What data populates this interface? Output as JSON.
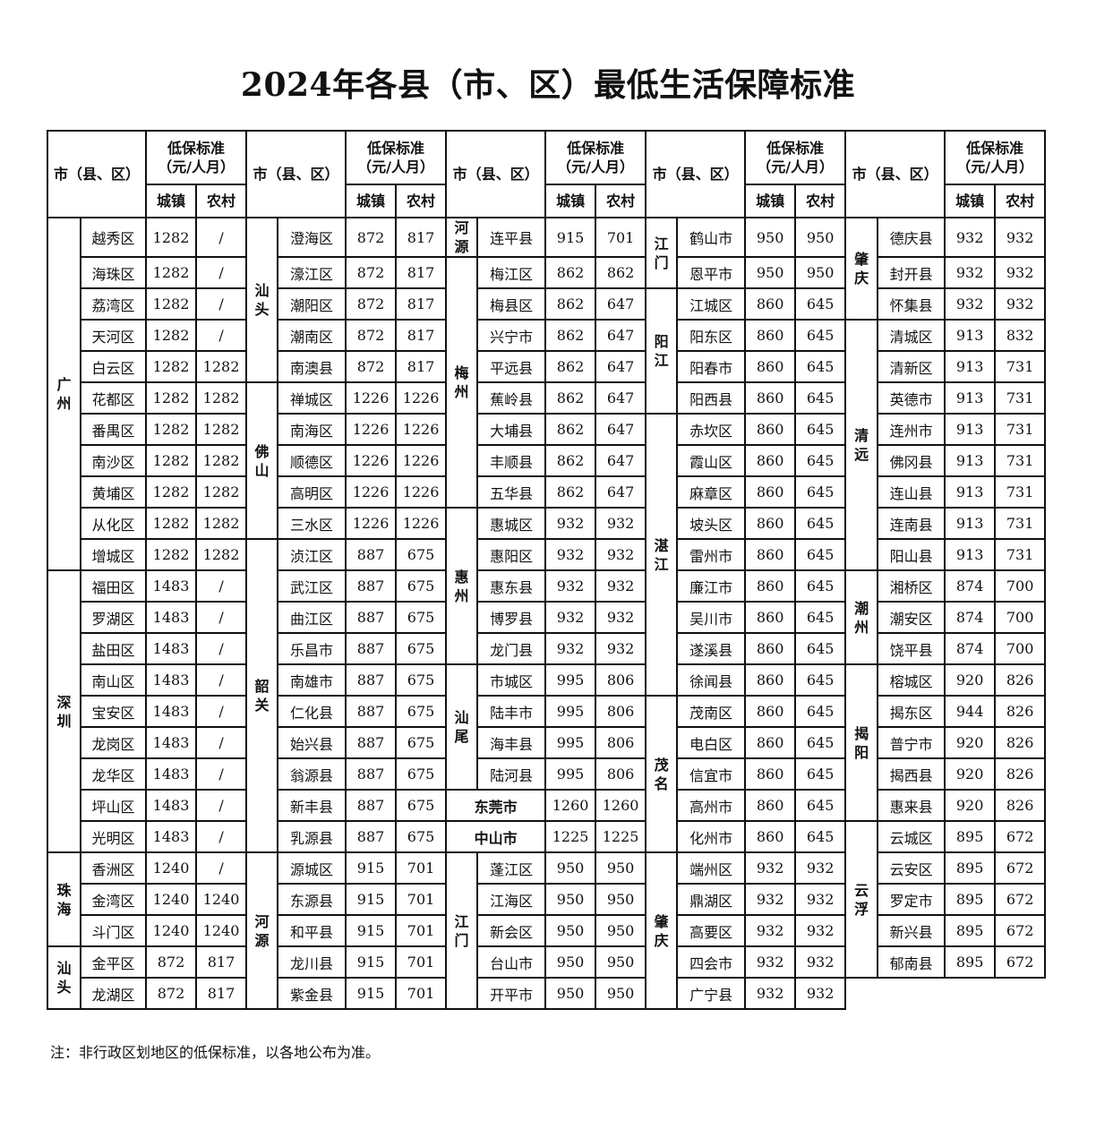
{
  "title": "2024年各县（市、区）最低生活保障标准",
  "header": {
    "area": "市（县、区）",
    "standard": "低保标准（元/人月）",
    "standard_l1": "低保标准",
    "standard_l2": "（元/人月）",
    "urban": "城镇",
    "rural": "农村"
  },
  "groups": [
    {
      "cities": [
        {
          "name": "广州",
          "districts": [
            {
              "name": "越秀区",
              "urban": "1282",
              "rural": "/"
            },
            {
              "name": "海珠区",
              "urban": "1282",
              "rural": "/"
            },
            {
              "name": "荔湾区",
              "urban": "1282",
              "rural": "/"
            },
            {
              "name": "天河区",
              "urban": "1282",
              "rural": "/"
            },
            {
              "name": "白云区",
              "urban": "1282",
              "rural": "1282"
            },
            {
              "name": "花都区",
              "urban": "1282",
              "rural": "1282"
            },
            {
              "name": "番禺区",
              "urban": "1282",
              "rural": "1282"
            },
            {
              "name": "南沙区",
              "urban": "1282",
              "rural": "1282"
            },
            {
              "name": "黄埔区",
              "urban": "1282",
              "rural": "1282"
            },
            {
              "name": "从化区",
              "urban": "1282",
              "rural": "1282"
            },
            {
              "name": "增城区",
              "urban": "1282",
              "rural": "1282"
            }
          ]
        },
        {
          "name": "深圳",
          "districts": [
            {
              "name": "福田区",
              "urban": "1483",
              "rural": "/"
            },
            {
              "name": "罗湖区",
              "urban": "1483",
              "rural": "/"
            },
            {
              "name": "盐田区",
              "urban": "1483",
              "rural": "/"
            },
            {
              "name": "南山区",
              "urban": "1483",
              "rural": "/"
            },
            {
              "name": "宝安区",
              "urban": "1483",
              "rural": "/"
            },
            {
              "name": "龙岗区",
              "urban": "1483",
              "rural": "/"
            },
            {
              "name": "龙华区",
              "urban": "1483",
              "rural": "/"
            },
            {
              "name": "坪山区",
              "urban": "1483",
              "rural": "/"
            },
            {
              "name": "光明区",
              "urban": "1483",
              "rural": "/"
            }
          ]
        },
        {
          "name": "珠海",
          "districts": [
            {
              "name": "香洲区",
              "urban": "1240",
              "rural": "/"
            },
            {
              "name": "金湾区",
              "urban": "1240",
              "rural": "1240"
            },
            {
              "name": "斗门区",
              "urban": "1240",
              "rural": "1240"
            }
          ]
        },
        {
          "name": "汕头",
          "districts": [
            {
              "name": "金平区",
              "urban": "872",
              "rural": "817"
            },
            {
              "name": "龙湖区",
              "urban": "872",
              "rural": "817"
            }
          ]
        }
      ]
    },
    {
      "cities": [
        {
          "name": "汕头",
          "districts": [
            {
              "name": "澄海区",
              "urban": "872",
              "rural": "817"
            },
            {
              "name": "濠江区",
              "urban": "872",
              "rural": "817"
            },
            {
              "name": "潮阳区",
              "urban": "872",
              "rural": "817"
            },
            {
              "name": "潮南区",
              "urban": "872",
              "rural": "817"
            },
            {
              "name": "南澳县",
              "urban": "872",
              "rural": "817"
            }
          ]
        },
        {
          "name": "佛山",
          "districts": [
            {
              "name": "禅城区",
              "urban": "1226",
              "rural": "1226"
            },
            {
              "name": "南海区",
              "urban": "1226",
              "rural": "1226"
            },
            {
              "name": "顺德区",
              "urban": "1226",
              "rural": "1226"
            },
            {
              "name": "高明区",
              "urban": "1226",
              "rural": "1226"
            },
            {
              "name": "三水区",
              "urban": "1226",
              "rural": "1226"
            }
          ]
        },
        {
          "name": "韶关",
          "districts": [
            {
              "name": "浈江区",
              "urban": "887",
              "rural": "675"
            },
            {
              "name": "武江区",
              "urban": "887",
              "rural": "675"
            },
            {
              "name": "曲江区",
              "urban": "887",
              "rural": "675"
            },
            {
              "name": "乐昌市",
              "urban": "887",
              "rural": "675"
            },
            {
              "name": "南雄市",
              "urban": "887",
              "rural": "675"
            },
            {
              "name": "仁化县",
              "urban": "887",
              "rural": "675"
            },
            {
              "name": "始兴县",
              "urban": "887",
              "rural": "675"
            },
            {
              "name": "翁源县",
              "urban": "887",
              "rural": "675"
            },
            {
              "name": "新丰县",
              "urban": "887",
              "rural": "675"
            },
            {
              "name": "乳源县",
              "urban": "887",
              "rural": "675"
            }
          ]
        },
        {
          "name": "河源",
          "districts": [
            {
              "name": "源城区",
              "urban": "915",
              "rural": "701"
            },
            {
              "name": "东源县",
              "urban": "915",
              "rural": "701"
            },
            {
              "name": "和平县",
              "urban": "915",
              "rural": "701"
            },
            {
              "name": "龙川县",
              "urban": "915",
              "rural": "701"
            },
            {
              "name": "紫金县",
              "urban": "915",
              "rural": "701"
            }
          ]
        }
      ]
    },
    {
      "cities": [
        {
          "name": "河源",
          "districts": [
            {
              "name": "连平县",
              "urban": "915",
              "rural": "701"
            }
          ]
        },
        {
          "name": "梅州",
          "districts": [
            {
              "name": "梅江区",
              "urban": "862",
              "rural": "862"
            },
            {
              "name": "梅县区",
              "urban": "862",
              "rural": "647"
            },
            {
              "name": "兴宁市",
              "urban": "862",
              "rural": "647"
            },
            {
              "name": "平远县",
              "urban": "862",
              "rural": "647"
            },
            {
              "name": "蕉岭县",
              "urban": "862",
              "rural": "647"
            },
            {
              "name": "大埔县",
              "urban": "862",
              "rural": "647"
            },
            {
              "name": "丰顺县",
              "urban": "862",
              "rural": "647"
            },
            {
              "name": "五华县",
              "urban": "862",
              "rural": "647"
            }
          ]
        },
        {
          "name": "惠州",
          "districts": [
            {
              "name": "惠城区",
              "urban": "932",
              "rural": "932"
            },
            {
              "name": "惠阳区",
              "urban": "932",
              "rural": "932"
            },
            {
              "name": "惠东县",
              "urban": "932",
              "rural": "932"
            },
            {
              "name": "博罗县",
              "urban": "932",
              "rural": "932"
            },
            {
              "name": "龙门县",
              "urban": "932",
              "rural": "932"
            }
          ]
        },
        {
          "name": "汕尾",
          "districts": [
            {
              "name": "市城区",
              "urban": "995",
              "rural": "806"
            },
            {
              "name": "陆丰市",
              "urban": "995",
              "rural": "806"
            },
            {
              "name": "海丰县",
              "urban": "995",
              "rural": "806"
            },
            {
              "name": "陆河县",
              "urban": "995",
              "rural": "806"
            }
          ]
        },
        {
          "name": "东莞市",
          "whole": true,
          "urban": "1260",
          "rural": "1260"
        },
        {
          "name": "中山市",
          "whole": true,
          "urban": "1225",
          "rural": "1225"
        },
        {
          "name": "江门",
          "districts": [
            {
              "name": "蓬江区",
              "urban": "950",
              "rural": "950"
            },
            {
              "name": "江海区",
              "urban": "950",
              "rural": "950"
            },
            {
              "name": "新会区",
              "urban": "950",
              "rural": "950"
            },
            {
              "name": "台山市",
              "urban": "950",
              "rural": "950"
            },
            {
              "name": "开平市",
              "urban": "950",
              "rural": "950"
            }
          ]
        }
      ]
    },
    {
      "cities": [
        {
          "name": "江门",
          "districts": [
            {
              "name": "鹤山市",
              "urban": "950",
              "rural": "950"
            },
            {
              "name": "恩平市",
              "urban": "950",
              "rural": "950"
            }
          ]
        },
        {
          "name": "阳江",
          "districts": [
            {
              "name": "江城区",
              "urban": "860",
              "rural": "645"
            },
            {
              "name": "阳东区",
              "urban": "860",
              "rural": "645"
            },
            {
              "name": "阳春市",
              "urban": "860",
              "rural": "645"
            },
            {
              "name": "阳西县",
              "urban": "860",
              "rural": "645"
            }
          ]
        },
        {
          "name": "湛江",
          "districts": [
            {
              "name": "赤坎区",
              "urban": "860",
              "rural": "645"
            },
            {
              "name": "霞山区",
              "urban": "860",
              "rural": "645"
            },
            {
              "name": "麻章区",
              "urban": "860",
              "rural": "645"
            },
            {
              "name": "坡头区",
              "urban": "860",
              "rural": "645"
            },
            {
              "name": "雷州市",
              "urban": "860",
              "rural": "645"
            },
            {
              "name": "廉江市",
              "urban": "860",
              "rural": "645"
            },
            {
              "name": "吴川市",
              "urban": "860",
              "rural": "645"
            },
            {
              "name": "遂溪县",
              "urban": "860",
              "rural": "645"
            },
            {
              "name": "徐闻县",
              "urban": "860",
              "rural": "645"
            }
          ]
        },
        {
          "name": "茂名",
          "districts": [
            {
              "name": "茂南区",
              "urban": "860",
              "rural": "645"
            },
            {
              "name": "电白区",
              "urban": "860",
              "rural": "645"
            },
            {
              "name": "信宜市",
              "urban": "860",
              "rural": "645"
            },
            {
              "name": "高州市",
              "urban": "860",
              "rural": "645"
            },
            {
              "name": "化州市",
              "urban": "860",
              "rural": "645"
            }
          ]
        },
        {
          "name": "肇庆",
          "districts": [
            {
              "name": "端州区",
              "urban": "932",
              "rural": "932"
            },
            {
              "name": "鼎湖区",
              "urban": "932",
              "rural": "932"
            },
            {
              "name": "高要区",
              "urban": "932",
              "rural": "932"
            },
            {
              "name": "四会市",
              "urban": "932",
              "rural": "932"
            },
            {
              "name": "广宁县",
              "urban": "932",
              "rural": "932"
            }
          ]
        }
      ]
    },
    {
      "cities": [
        {
          "name": "肇庆",
          "districts": [
            {
              "name": "德庆县",
              "urban": "932",
              "rural": "932"
            },
            {
              "name": "封开县",
              "urban": "932",
              "rural": "932"
            },
            {
              "name": "怀集县",
              "urban": "932",
              "rural": "932"
            }
          ]
        },
        {
          "name": "清远",
          "districts": [
            {
              "name": "清城区",
              "urban": "913",
              "rural": "832"
            },
            {
              "name": "清新区",
              "urban": "913",
              "rural": "731"
            },
            {
              "name": "英德市",
              "urban": "913",
              "rural": "731"
            },
            {
              "name": "连州市",
              "urban": "913",
              "rural": "731"
            },
            {
              "name": "佛冈县",
              "urban": "913",
              "rural": "731"
            },
            {
              "name": "连山县",
              "urban": "913",
              "rural": "731"
            },
            {
              "name": "连南县",
              "urban": "913",
              "rural": "731"
            },
            {
              "name": "阳山县",
              "urban": "913",
              "rural": "731"
            }
          ]
        },
        {
          "name": "潮州",
          "districts": [
            {
              "name": "湘桥区",
              "urban": "874",
              "rural": "700"
            },
            {
              "name": "潮安区",
              "urban": "874",
              "rural": "700"
            },
            {
              "name": "饶平县",
              "urban": "874",
              "rural": "700"
            }
          ]
        },
        {
          "name": "揭阳",
          "districts": [
            {
              "name": "榕城区",
              "urban": "920",
              "rural": "826"
            },
            {
              "name": "揭东区",
              "urban": "944",
              "rural": "826"
            },
            {
              "name": "普宁市",
              "urban": "920",
              "rural": "826"
            },
            {
              "name": "揭西县",
              "urban": "920",
              "rural": "826"
            },
            {
              "name": "惠来县",
              "urban": "920",
              "rural": "826"
            }
          ]
        },
        {
          "name": "云浮",
          "districts": [
            {
              "name": "云城区",
              "urban": "895",
              "rural": "672"
            },
            {
              "name": "云安区",
              "urban": "895",
              "rural": "672"
            },
            {
              "name": "罗定市",
              "urban": "895",
              "rural": "672"
            },
            {
              "name": "新兴县",
              "urban": "895",
              "rural": "672"
            },
            {
              "name": "郁南县",
              "urban": "895",
              "rural": "672"
            }
          ]
        }
      ]
    }
  ],
  "note": "注：非行政区划地区的低保标准，以各地公布为准。"
}
